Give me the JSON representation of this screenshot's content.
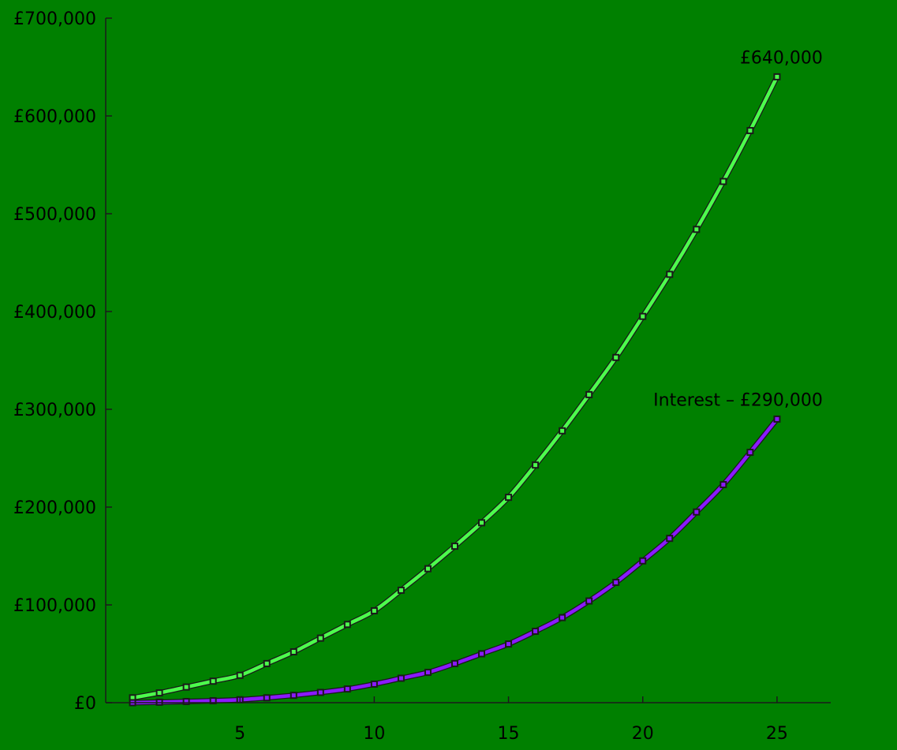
{
  "chart_data": {
    "type": "line",
    "title": "",
    "xlabel": "",
    "ylabel": "",
    "x": [
      1,
      2,
      3,
      4,
      5,
      6,
      7,
      8,
      9,
      10,
      11,
      12,
      13,
      14,
      15,
      16,
      17,
      18,
      19,
      20,
      21,
      22,
      23,
      24,
      25
    ],
    "xlim": [
      0,
      27
    ],
    "ylim": [
      0,
      700000
    ],
    "x_ticks": [
      5,
      10,
      15,
      20,
      25
    ],
    "x_tick_labels": [
      "5",
      "10",
      "15",
      "20",
      "25"
    ],
    "y_ticks": [
      0,
      100000,
      200000,
      300000,
      400000,
      500000,
      600000,
      700000
    ],
    "y_tick_labels": [
      "£0",
      "£100,000",
      "£200,000",
      "£300,000",
      "£400,000",
      "£500,000",
      "£600,000",
      "£700,000"
    ],
    "grid": false,
    "legend": "none",
    "series": [
      {
        "color": "#4cff4c",
        "values": [
          5000,
          10000,
          16000,
          22000,
          28000,
          40000,
          52000,
          66000,
          80000,
          94000,
          115000,
          137000,
          160000,
          184000,
          210000,
          243000,
          278000,
          315000,
          353000,
          395000,
          438000,
          484000,
          533000,
          585000,
          640000
        ]
      },
      {
        "color": "#8a1aff",
        "values": [
          0,
          500,
          1200,
          2000,
          3000,
          5000,
          7500,
          10500,
          14000,
          19000,
          25000,
          31000,
          40000,
          50000,
          60000,
          73000,
          87000,
          104000,
          123000,
          145000,
          168000,
          195000,
          223000,
          256000,
          290000
        ]
      }
    ],
    "annotations": [
      {
        "text": "£640,000",
        "series": 0,
        "x": 25
      },
      {
        "text": "Interest – £290,000",
        "series": 1,
        "x": 25
      }
    ],
    "colors": {
      "background": "#008000",
      "axis": "#1a1a1a",
      "text": "#000000",
      "marker": "#1a1a1a"
    }
  }
}
